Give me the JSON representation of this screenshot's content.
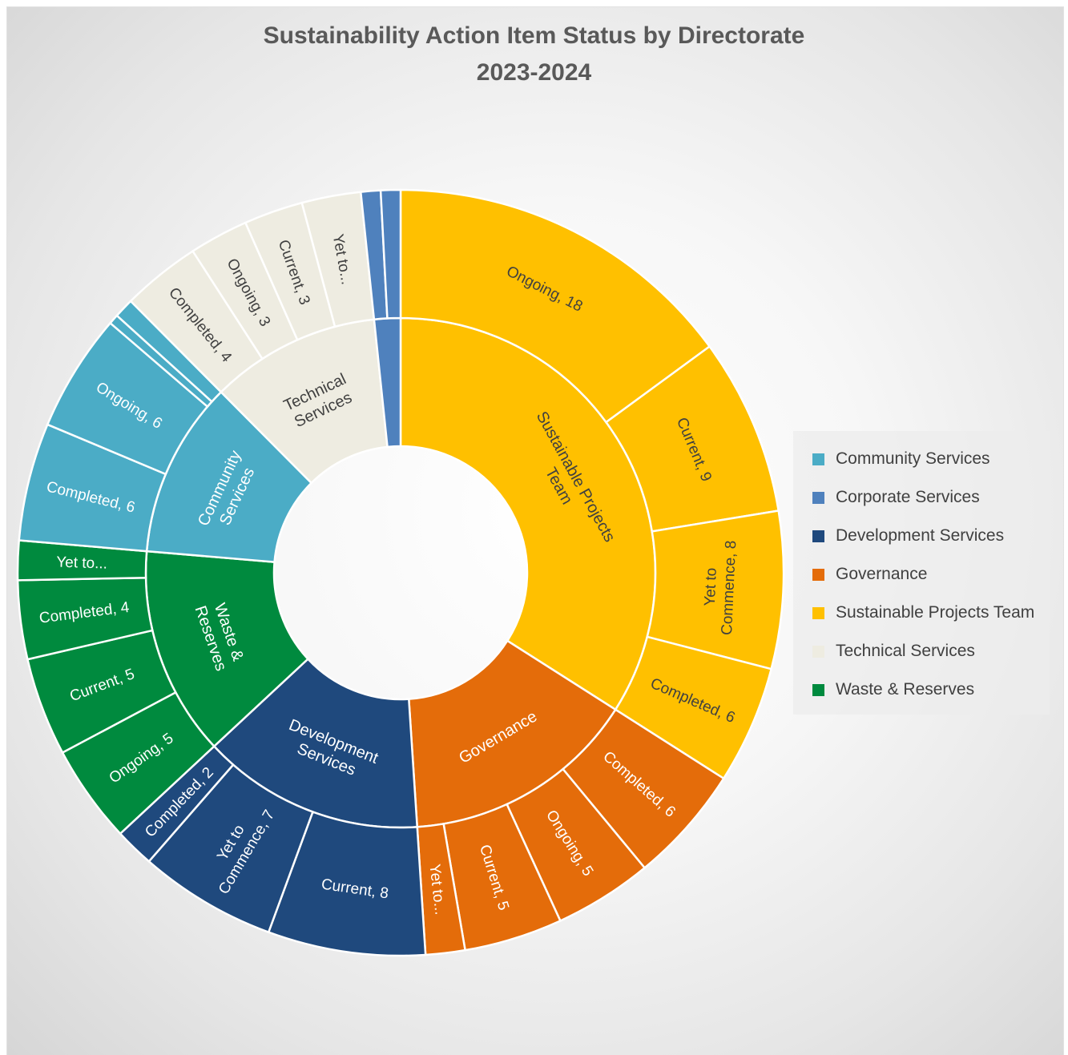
{
  "chart_data": {
    "type": "sunburst",
    "title_line1": "Sustainability Action Item Status by Directorate",
    "title_line2": "2023-2024",
    "directorates": [
      {
        "name": "Sustainable Projects Team",
        "label": "Sustainable Projects Team",
        "color": "#FFC000",
        "children": [
          {
            "status": "Ongoing",
            "value": 18,
            "label": "Ongoing, 18"
          },
          {
            "status": "Current",
            "value": 9,
            "label": "Current, 9"
          },
          {
            "status": "Yet to Commence",
            "value": 8,
            "label": "Yet to Commence, 8"
          },
          {
            "status": "Completed",
            "value": 6,
            "label": "Completed, 6"
          }
        ]
      },
      {
        "name": "Governance",
        "label": "Governance",
        "color": "#E46C0A",
        "children": [
          {
            "status": "Completed",
            "value": 6,
            "label": "Completed, 6"
          },
          {
            "status": "Ongoing",
            "value": 5,
            "label": "Ongoing, 5"
          },
          {
            "status": "Current",
            "value": 5,
            "label": "Current, 5"
          },
          {
            "status": "Yet to Commence",
            "value": 2,
            "label": "Yet to..."
          }
        ]
      },
      {
        "name": "Development Services",
        "label": "Development Services",
        "color": "#1F497D",
        "children": [
          {
            "status": "Current",
            "value": 8,
            "label": "Current, 8"
          },
          {
            "status": "Yet to Commence",
            "value": 7,
            "label": "Yet to Commence, 7"
          },
          {
            "status": "Completed",
            "value": 2,
            "label": "Completed, 2"
          }
        ]
      },
      {
        "name": "Waste & Reserves",
        "label": "Waste & Reserves",
        "color": "#008A3E",
        "children": [
          {
            "status": "Ongoing",
            "value": 5,
            "label": "Ongoing, 5"
          },
          {
            "status": "Current",
            "value": 5,
            "label": "Current, 5"
          },
          {
            "status": "Completed",
            "value": 4,
            "label": "Completed, 4"
          },
          {
            "status": "Yet to Commence",
            "value": 2,
            "label": "Yet to..."
          }
        ]
      },
      {
        "name": "Community Services",
        "label": "Community Services",
        "color": "#4BACC6",
        "children": [
          {
            "status": "Completed",
            "value": 6,
            "label": "Completed, 6"
          },
          {
            "status": "Ongoing",
            "value": 6,
            "label": "Ongoing, 6"
          },
          {
            "status": "Current",
            "value": 0.5,
            "label": ""
          },
          {
            "status": "Yet to Commence",
            "value": 1,
            "label": ""
          }
        ]
      },
      {
        "name": "Technical Services",
        "label": "Technical Services",
        "color": "#EEECE1",
        "children": [
          {
            "status": "Completed",
            "value": 4,
            "label": "Completed, 4"
          },
          {
            "status": "Ongoing",
            "value": 3,
            "label": "Ongoing, 3"
          },
          {
            "status": "Current",
            "value": 3,
            "label": "Current, 3"
          },
          {
            "status": "Yet to Commence",
            "value": 3,
            "label": "Yet to..."
          }
        ]
      },
      {
        "name": "Corporate Services",
        "label": "",
        "color": "#4F81BD",
        "children": [
          {
            "status": "",
            "value": 1,
            "label": ""
          },
          {
            "status": "",
            "value": 1,
            "label": ""
          }
        ]
      }
    ],
    "legend_placement": "right",
    "legend": [
      {
        "name": "Community Services",
        "color": "#4BACC6"
      },
      {
        "name": "Corporate Services",
        "color": "#4F81BD"
      },
      {
        "name": "Development Services",
        "color": "#1F497D"
      },
      {
        "name": "Governance",
        "color": "#E46C0A"
      },
      {
        "name": "Sustainable Projects Team",
        "color": "#FFC000"
      },
      {
        "name": "Technical Services",
        "color": "#EEECE1"
      },
      {
        "name": "Waste & Reserves",
        "color": "#008A3E"
      }
    ]
  }
}
